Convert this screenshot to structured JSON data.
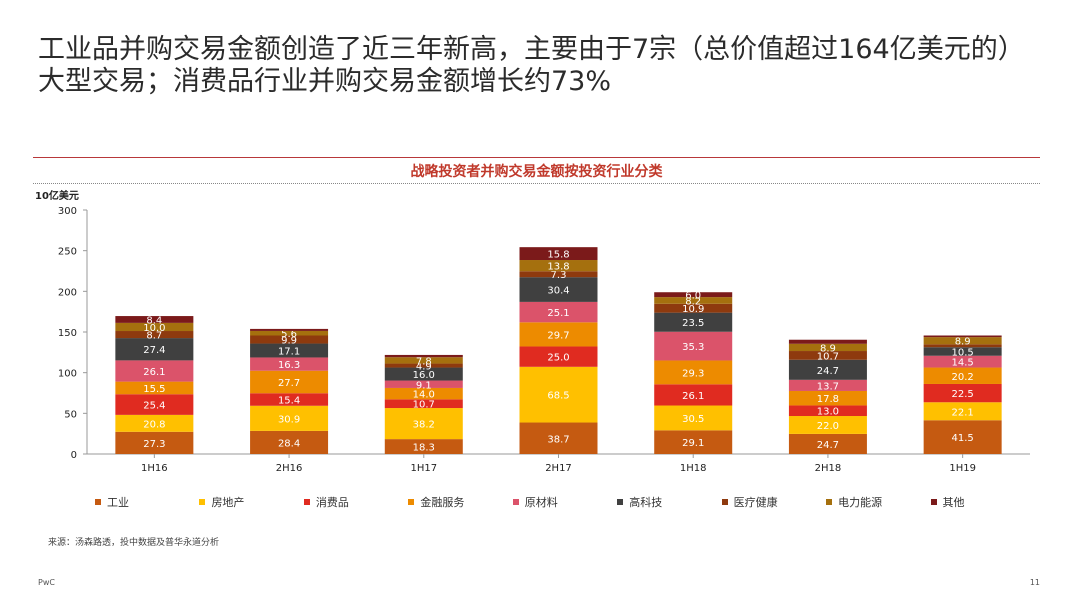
{
  "headline": "工业品并购交易金额创造了近三年新高，主要由于7宗（总价值超过164亿美元的）大型交易；消费品行业并购交易金额增长约73%",
  "source": "来源：汤森路透，投中数据及普华永道分析",
  "footer": {
    "brand": "PwC",
    "page_number": "11"
  },
  "chart_data": {
    "type": "bar",
    "stacked": true,
    "title": "战略投资者并购交易金额按投资行业分类",
    "ylabel": "10亿美元",
    "xlabel": "",
    "ylim": [
      0,
      300
    ],
    "yticks": [
      "0",
      "50",
      "100",
      "150",
      "200",
      "250",
      "300"
    ],
    "grid": false,
    "legend_position": "bottom",
    "categories": [
      "1H16",
      "2H16",
      "1H17",
      "2H17",
      "1H18",
      "2H18",
      "1H19"
    ],
    "series": [
      {
        "name": "工业",
        "color": "#c55a11",
        "values": [
          27.3,
          28.4,
          18.3,
          38.7,
          29.1,
          24.7,
          41.5
        ],
        "labels": [
          "27.3",
          "28.4",
          "18.3",
          "38.7",
          "29.1",
          "24.7",
          "41.5"
        ]
      },
      {
        "name": "房地产",
        "color": "#ffc000",
        "values": [
          20.8,
          30.9,
          38.2,
          68.5,
          30.5,
          22.0,
          22.1
        ],
        "labels": [
          "20.8",
          "30.9",
          "38.2",
          "68.5",
          "30.5",
          "22.0",
          "22.1"
        ]
      },
      {
        "name": "消费品",
        "color": "#e02b20",
        "values": [
          25.4,
          15.4,
          10.7,
          25.0,
          26.1,
          13.0,
          22.5
        ],
        "labels": [
          "25.4",
          "15.4",
          "10.7",
          "25.0",
          "26.1",
          "13.0",
          "22.5"
        ]
      },
      {
        "name": "金融服务",
        "color": "#ed8b00",
        "values": [
          15.5,
          27.7,
          14.0,
          29.7,
          29.3,
          17.8,
          20.2
        ],
        "labels": [
          "15.5",
          "27.7",
          "14.0",
          "29.7",
          "29.3",
          "17.8",
          "20.2"
        ]
      },
      {
        "name": "原材料",
        "color": "#db536a",
        "values": [
          26.1,
          16.3,
          9.1,
          25.1,
          35.3,
          13.7,
          14.5
        ],
        "labels": [
          "26.1",
          "16.3",
          "9.1",
          "25.1",
          "35.3",
          "13.7",
          "14.5"
        ]
      },
      {
        "name": "高科技",
        "color": "#404040",
        "values": [
          27.4,
          17.1,
          16.0,
          30.4,
          23.5,
          24.7,
          10.5
        ],
        "labels": [
          "27.4",
          "17.1",
          "16.0",
          "30.4",
          "23.5",
          "24.7",
          "10.5"
        ]
      },
      {
        "name": "医疗健康",
        "color": "#8e3a0e",
        "values": [
          8.7,
          9.9,
          4.9,
          7.3,
          10.9,
          10.7,
          3.5
        ],
        "labels": [
          "8.7",
          "9.9",
          "4.9",
          "7.3",
          "10.9",
          "10.7",
          ""
        ]
      },
      {
        "name": "电力能源",
        "color": "#a5700e",
        "values": [
          10.0,
          5.6,
          7.8,
          13.8,
          8.2,
          8.9,
          8.9
        ],
        "labels": [
          "10.0",
          "5.6",
          "7.8",
          "13.8",
          "8.2",
          "8.9",
          "8.9"
        ]
      },
      {
        "name": "其他",
        "color": "#7b1a1a",
        "values": [
          8.4,
          2.5,
          2.8,
          15.8,
          6.0,
          5.0,
          2.0
        ],
        "labels": [
          "8.4",
          "",
          "",
          "15.8",
          "6.0",
          "",
          ""
        ]
      }
    ]
  }
}
